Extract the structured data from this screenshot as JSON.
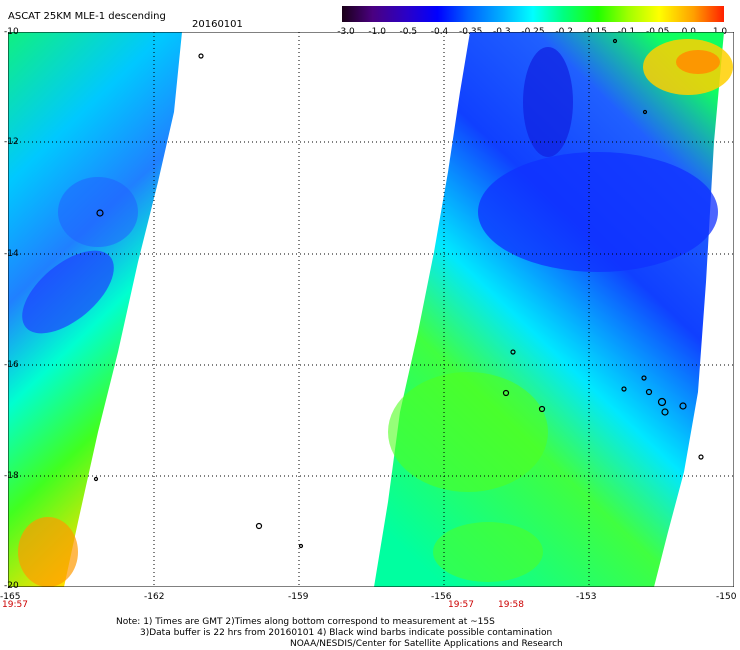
{
  "header": {
    "title": "ASCAT 25KM MLE-1 descending",
    "date": "20160101"
  },
  "colorbar": {
    "labels": [
      "-3.0",
      "-1.0",
      "-0.5",
      "-0.4",
      "-0.35",
      "-0.3",
      "-0.25",
      "-0.2",
      "-0.15",
      "-0.1",
      "-0.05",
      "0.0",
      "1.0"
    ],
    "colors": [
      "#1a0018",
      "#4a0080",
      "#2a00c8",
      "#0000ff",
      "#0060ff",
      "#00b0ff",
      "#00ffff",
      "#00ff80",
      "#20ff00",
      "#a0ff00",
      "#ffff00",
      "#ffa000",
      "#ff3000"
    ]
  },
  "map": {
    "lat_labels": [
      "-10",
      "-12",
      "-14",
      "-16",
      "-18",
      "-20"
    ],
    "lon_labels": [
      "-165",
      "-162",
      "-159",
      "-156",
      "-153",
      "-150"
    ]
  },
  "times": {
    "left": "19:57",
    "mid1": "19:57",
    "mid2": "19:58"
  },
  "notes": {
    "line1": "Note: 1) Times are GMT 2)Times along bottom correspond to measurement at ~15S",
    "line2": "3)Data buffer is 22 hrs from 20160101 4) Black wind barbs indicate possible contamination",
    "line3": "NOAA/NESDIS/Center for Satellite Applications and Research"
  }
}
